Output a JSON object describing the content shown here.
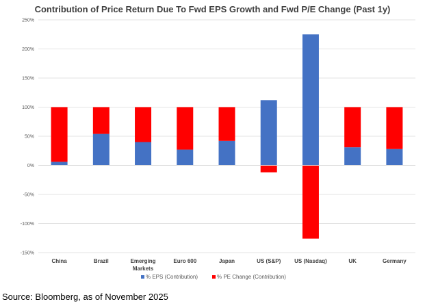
{
  "chart_data": {
    "type": "bar",
    "stacked": true,
    "title": "Contribution of Price Return Due To Fwd EPS Growth and Fwd P/E Change (Past 1y)",
    "xlabel": "",
    "ylabel": "",
    "ylim": [
      -150,
      250
    ],
    "yticks": [
      250,
      200,
      150,
      100,
      50,
      0,
      -50,
      -100,
      -150
    ],
    "ytick_labels": [
      "250%",
      "200%",
      "150%",
      "100%",
      "50%",
      "0%",
      "-50%",
      "-100%",
      "-150%"
    ],
    "grid": true,
    "legend_position": "bottom",
    "categories": [
      [
        "China"
      ],
      [
        "Brazil"
      ],
      [
        "Emerging",
        "Markets"
      ],
      [
        "Euro 600"
      ],
      [
        "Japan"
      ],
      [
        "US (S&P)"
      ],
      [
        "US (Nasdaq)"
      ],
      [
        "UK"
      ],
      [
        "Germany"
      ]
    ],
    "series": [
      {
        "name": "% EPS (Contribution)",
        "color": "#4472C4",
        "values": [
          6,
          54,
          40,
          27,
          42,
          112,
          225,
          31,
          28
        ]
      },
      {
        "name": "% PE Change (Contribution)",
        "color": "#FF0000",
        "values": [
          94,
          46,
          60,
          73,
          58,
          -12,
          -126,
          69,
          72
        ]
      }
    ]
  },
  "source": "Source: Bloomberg, as of November 2025"
}
